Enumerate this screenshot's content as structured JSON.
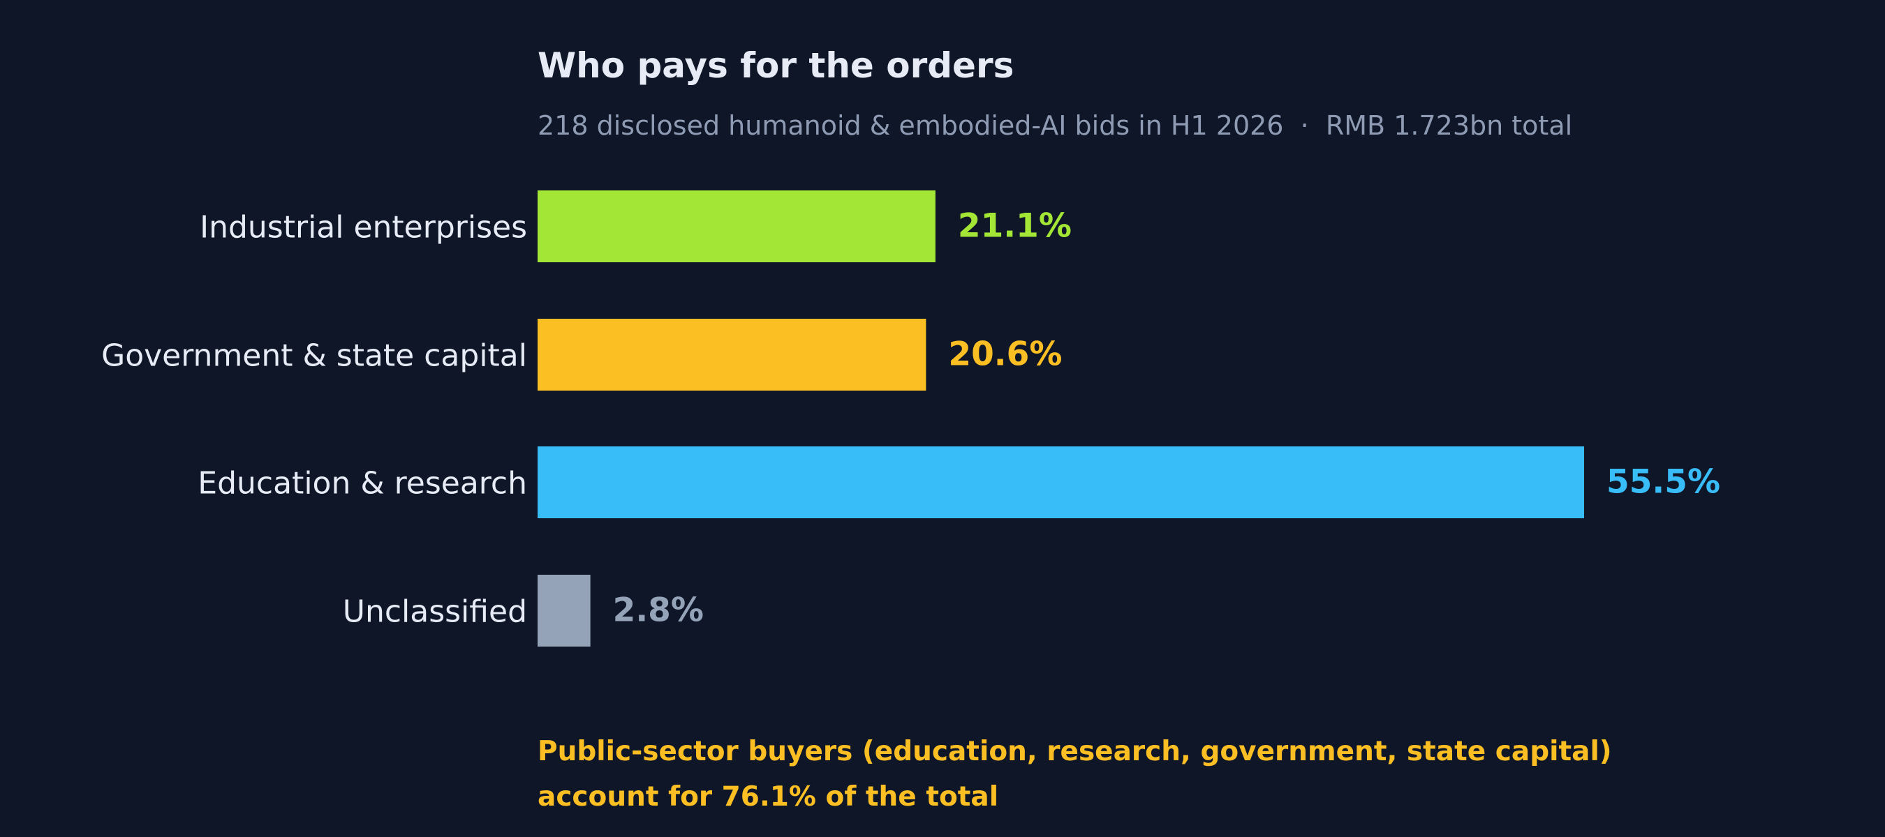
{
  "chart_data": {
    "type": "bar",
    "orientation": "horizontal",
    "title": "Who pays for the orders",
    "subtitle": "218 disclosed humanoid & embodied-AI bids in H1 2026  ·  RMB 1.723bn total",
    "categories": [
      "Industrial enterprises",
      "Government & state capital",
      "Education & research",
      "Unclassified"
    ],
    "values": [
      21.1,
      20.6,
      55.5,
      2.8
    ],
    "value_labels": [
      "21.1%",
      "20.6%",
      "55.5%",
      "2.8%"
    ],
    "colors": [
      "#a3e635",
      "#fbbf24",
      "#38bdf8",
      "#94a3b8"
    ],
    "xlim": [
      0,
      55.5
    ],
    "grid": false,
    "legend": "none",
    "note_lines": [
      "Public-sector buyers (education, research, government, state capital)",
      "account for 76.1% of the total"
    ],
    "note_color": "#fbbf24"
  }
}
